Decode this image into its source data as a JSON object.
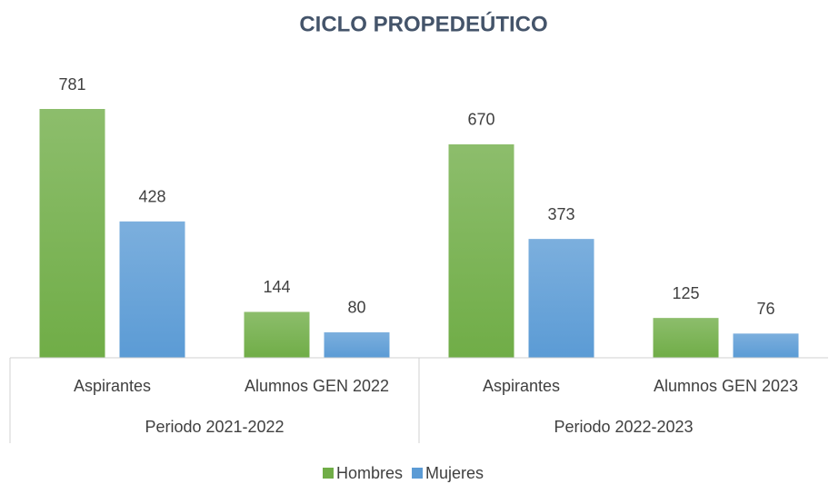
{
  "chart_data": {
    "type": "bar",
    "title": "CICLO PROPEDEÚTICO",
    "groups": [
      "Periodo 2021-2022",
      "Periodo 2022-2023"
    ],
    "categories": [
      "Aspirantes",
      "Alumnos GEN 2022",
      "Aspirantes",
      "Alumnos GEN 2023"
    ],
    "series": [
      {
        "name": "Hombres",
        "color": "#70ad47",
        "values": [
          781,
          144,
          670,
          125
        ]
      },
      {
        "name": "Mujeres",
        "color": "#5b9bd5",
        "values": [
          428,
          80,
          373,
          76
        ]
      }
    ]
  }
}
